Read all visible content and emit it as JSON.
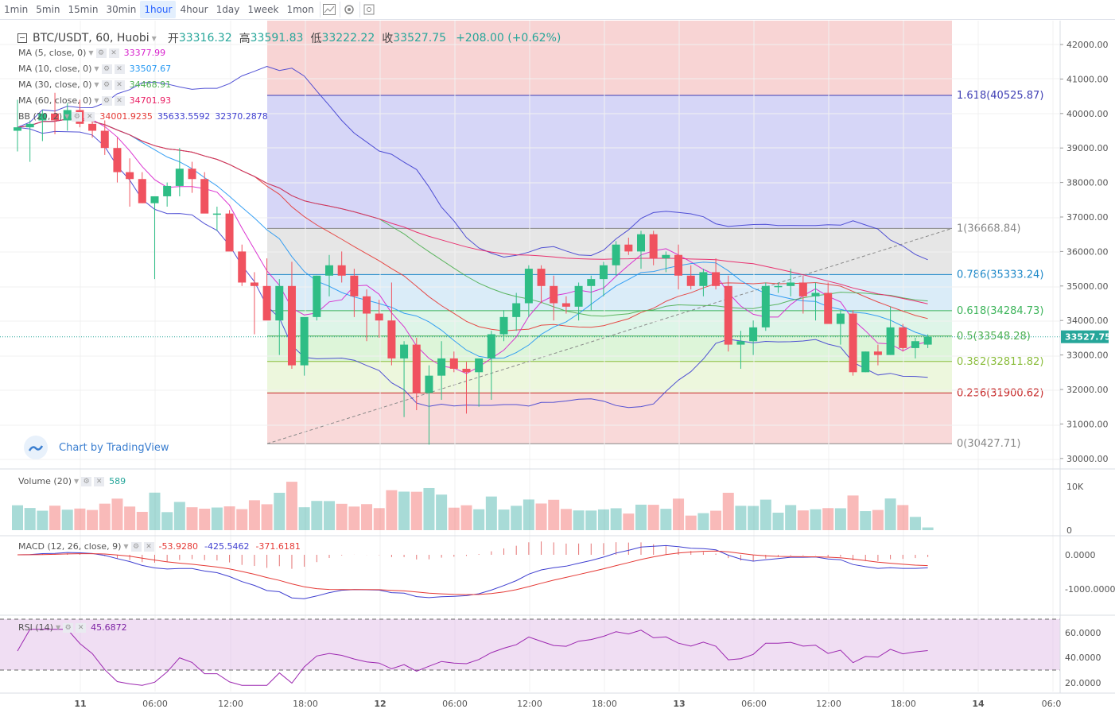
{
  "toolbar": {
    "timeframes": [
      "1min",
      "5min",
      "15min",
      "30min",
      "1hour",
      "4hour",
      "1day",
      "1week",
      "1mon"
    ],
    "active_timeframe": "1hour",
    "tools": [
      "candle-style-icon",
      "settings-icon",
      "screenshot-icon"
    ]
  },
  "header": {
    "symbol": "BTC/USDT, 60, Huobi",
    "open_label": "开",
    "open": "33316.32",
    "high_label": "高",
    "high": "33591.83",
    "low_label": "低",
    "low": "33222.22",
    "close_label": "收",
    "close": "33527.75",
    "change": "+208.00 (+0.62%)"
  },
  "legends": {
    "ma5": {
      "label": "MA (5, close, 0)",
      "value": "33377.99",
      "color": "#d71fcc"
    },
    "ma10": {
      "label": "MA (10, close, 0)",
      "value": "33507.67",
      "color": "#2196f3"
    },
    "ma30": {
      "label": "MA (30, close, 0)",
      "value": "34468.91",
      "color": "#4caf50"
    },
    "ma60": {
      "label": "MA (60, close, 0)",
      "value": "34701.93",
      "color": "#e91e63"
    },
    "bb": {
      "label": "BB (20, 2)",
      "values": [
        "34001.9235",
        "35633.5592",
        "32370.2878"
      ],
      "colors": [
        "#e53935",
        "#3f3fd0",
        "#3f3fd0"
      ]
    }
  },
  "fib_levels": [
    {
      "label": "1.618(40525.87)",
      "price": 40525.87,
      "line": "#3f3fb4",
      "fill": "rgba(120,120,230,0.30)"
    },
    {
      "label": "1(36668.84)",
      "price": 36668.84,
      "line": "#888888",
      "fill": "rgba(200,200,200,0.45)"
    },
    {
      "label": "0.786(35333.24)",
      "price": 35333.24,
      "line": "#1e88c8",
      "fill": "rgba(150,200,235,0.35)"
    },
    {
      "label": "0.618(34284.73)",
      "price": 34284.73,
      "line": "#3cb45a",
      "fill": "rgba(160,225,190,0.35)"
    },
    {
      "label": "0.5(33548.28)",
      "price": 33548.28,
      "line": "#4caf50",
      "fill": "rgba(170,230,160,0.40)"
    },
    {
      "label": "0.382(32811.82)",
      "price": 32811.82,
      "line": "#8bbd3c",
      "fill": "rgba(210,235,170,0.40)"
    },
    {
      "label": "0.236(31900.62)",
      "price": 31900.62,
      "line": "#c62828",
      "fill": "rgba(240,160,160,0.40)"
    },
    {
      "label": "0(30427.71)",
      "price": 30427.71,
      "line": "#888888",
      "fill": ""
    }
  ],
  "fib_top_fill": "rgba(240,160,160,0.45)",
  "price_axis": {
    "ticks": [
      "42000.00",
      "41000.00",
      "40000.00",
      "39000.00",
      "38000.00",
      "37000.00",
      "36000.00",
      "35000.00",
      "34000.00",
      "33000.00",
      "32000.00",
      "31000.00",
      "30000.00"
    ],
    "last_price": "33527.75",
    "last_price_color": "#26a69a"
  },
  "time_axis": {
    "labels": [
      "11",
      "06:00",
      "12:00",
      "18:00",
      "12",
      "06:00",
      "12:00",
      "18:00",
      "13",
      "06:00",
      "12:00",
      "18:00",
      "14",
      "06:0"
    ]
  },
  "watermark": {
    "text": "Chart by TradingView"
  },
  "volume": {
    "label": "Volume (20)",
    "value": "589",
    "ticks": [
      "10K",
      "0"
    ]
  },
  "macd": {
    "label": "MACD (12, 26, close, 9)",
    "values": [
      "-53.9280",
      "-425.5462",
      "-371.6181"
    ],
    "colors": [
      "#e53935",
      "#3f3fd0",
      "#e53935"
    ],
    "ticks": [
      "0.0000",
      "-1000.0000"
    ]
  },
  "rsi": {
    "label": "RSI (14)",
    "value": "45.6872",
    "ticks": [
      "60.0000",
      "40.0000",
      "20.0000"
    ]
  },
  "colors": {
    "up": "#26a69a",
    "down": "#ef5350",
    "up_body": "#2ebd85",
    "down_body": "#f0525f"
  }
}
